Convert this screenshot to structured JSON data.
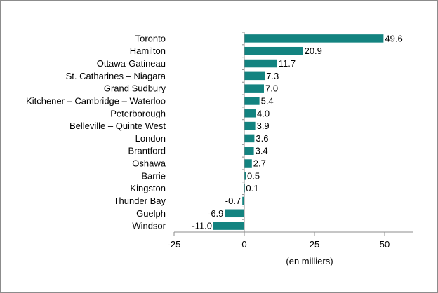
{
  "chart_data": {
    "type": "bar",
    "orientation": "horizontal",
    "categories": [
      "Toronto",
      "Hamilton",
      "Ottawa-Gatineau",
      "St. Catharines – Niagara",
      "Grand Sudbury",
      "Kitchener – Cambridge – Waterloo",
      "Peterborough",
      "Belleville – Quinte West",
      "London",
      "Brantford",
      "Oshawa",
      "Barrie",
      "Kingston",
      "Thunder Bay",
      "Guelph",
      "Windsor"
    ],
    "values": [
      49.6,
      20.9,
      11.7,
      7.3,
      7.0,
      5.4,
      4.0,
      3.9,
      3.6,
      3.4,
      2.7,
      0.5,
      0.1,
      -0.7,
      -6.9,
      -11.0
    ],
    "value_labels": [
      "49.6",
      "20.9",
      "11.7",
      "7.3",
      "7.0",
      "5.4",
      "4.0",
      "3.9",
      "3.6",
      "3.4",
      "2.7",
      "0.5",
      "0.1",
      "-0.7",
      "-6.9",
      "-11.0"
    ],
    "xlabel": "(en milliers)",
    "ylabel": "",
    "title": "",
    "xlim": [
      -25,
      60
    ],
    "xticks": [
      -25,
      0,
      25,
      50
    ],
    "grid": false,
    "legend": "none",
    "bar_color": "#138380"
  }
}
